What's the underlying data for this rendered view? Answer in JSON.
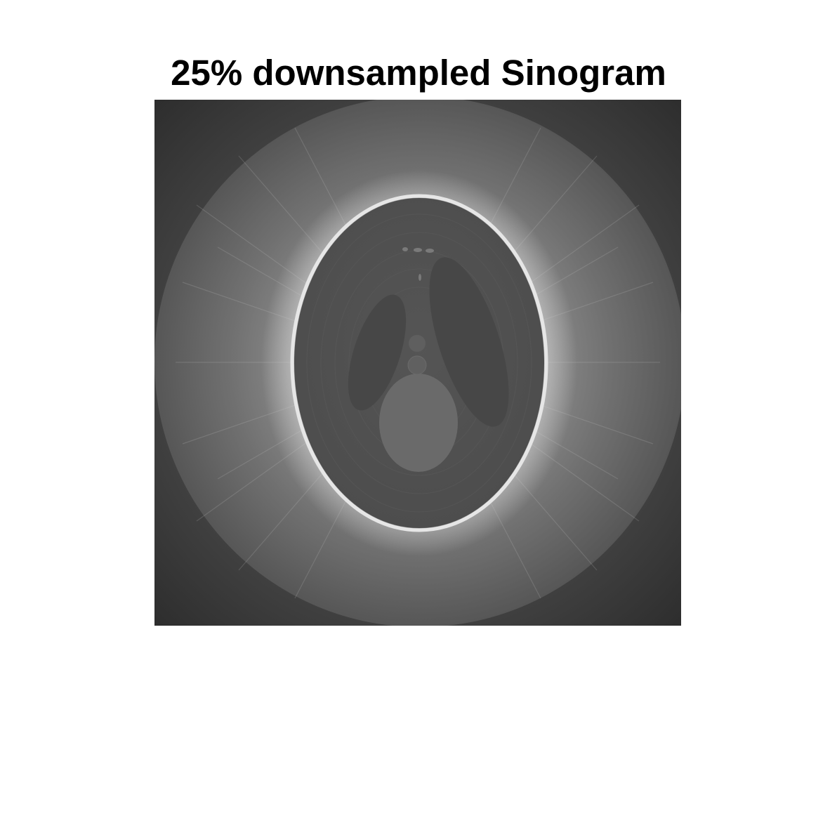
{
  "figure": {
    "title": "25% downsampled Sinogram"
  },
  "image": {
    "content": "grayscale reconstruction of an elliptical phantom",
    "colors": {
      "background_dark": "#353535",
      "halo_light": "#8e8e8e",
      "rim_bright": "#e6e6e6",
      "interior": "#525252",
      "lobes": "#464646",
      "center_blob": "#6b6b6b"
    }
  }
}
